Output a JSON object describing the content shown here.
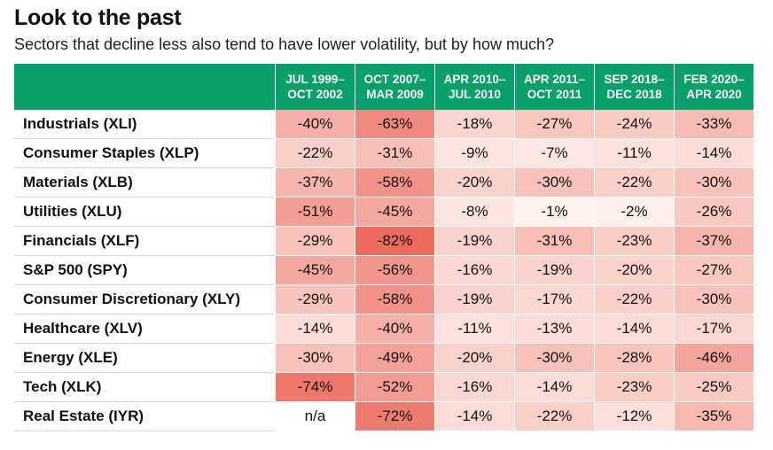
{
  "title": "Look to the past",
  "subtitle": "Sectors that decline less also tend to have lower volatility, but by how much?",
  "colors": {
    "header_bg": "#0aa069",
    "header_text": "#ffffff",
    "heat_low": "#fff3f0",
    "heat_high": "#ec6a5e"
  },
  "chart_data": {
    "type": "table",
    "title": "Look to the past",
    "subtitle": "Sectors that decline less also tend to have lower volatility, but by how much?",
    "columns": [
      [
        "JUL 1999–",
        "OCT 2002"
      ],
      [
        "OCT 2007–",
        "MAR 2009"
      ],
      [
        "APR 2010–",
        "JUL 2010"
      ],
      [
        "APR 2011–",
        "OCT 2011"
      ],
      [
        "SEP 2018–",
        "DEC 2018"
      ],
      [
        "FEB 2020–",
        "APR 2020"
      ]
    ],
    "rows": [
      {
        "label": "Industrials (XLI)",
        "values": [
          -40,
          -63,
          -18,
          -27,
          -24,
          -33
        ]
      },
      {
        "label": "Consumer Staples (XLP)",
        "values": [
          -22,
          -31,
          -9,
          -7,
          -11,
          -14
        ]
      },
      {
        "label": "Materials (XLB)",
        "values": [
          -37,
          -58,
          -20,
          -30,
          -22,
          -30
        ]
      },
      {
        "label": "Utilities (XLU)",
        "values": [
          -51,
          -45,
          -8,
          -1,
          -2,
          -26
        ]
      },
      {
        "label": "Financials (XLF)",
        "values": [
          -29,
          -82,
          -19,
          -31,
          -23,
          -37
        ]
      },
      {
        "label": "S&P 500 (SPY)",
        "values": [
          -45,
          -56,
          -16,
          -19,
          -20,
          -27
        ]
      },
      {
        "label": "Consumer Discretionary (XLY)",
        "values": [
          -29,
          -58,
          -19,
          -17,
          -22,
          -30
        ]
      },
      {
        "label": "Healthcare (XLV)",
        "values": [
          -14,
          -40,
          -11,
          -13,
          -14,
          -17
        ]
      },
      {
        "label": "Energy (XLE)",
        "values": [
          -30,
          -49,
          -20,
          -30,
          -28,
          -46
        ]
      },
      {
        "label": "Tech (XLK)",
        "values": [
          -74,
          -52,
          -16,
          -14,
          -23,
          -25
        ]
      },
      {
        "label": "Real Estate (IYR)",
        "values": [
          null,
          -72,
          -14,
          -22,
          -12,
          -35
        ]
      }
    ],
    "missing_text": "n/a",
    "value_suffix": "%"
  }
}
